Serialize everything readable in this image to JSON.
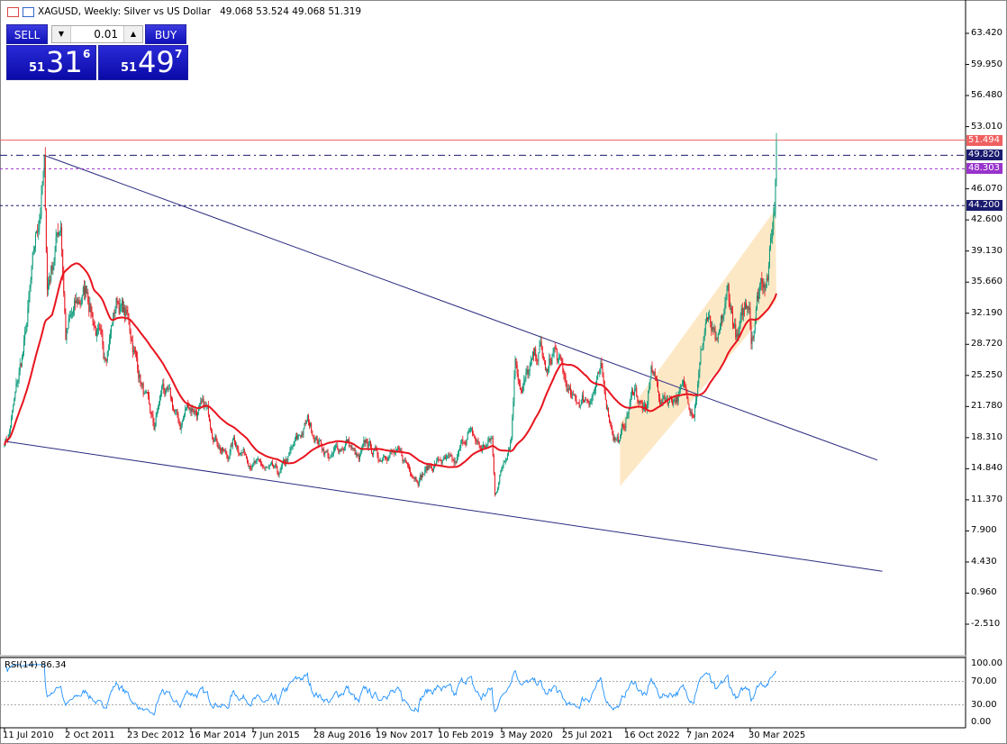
{
  "header": {
    "symbol_title": "XAGUSD, Weekly:  Silver vs US Dollar",
    "ohlc": "49.068 53.524 49.068 51.319",
    "icons": [
      "menu-icon",
      "chart-icon"
    ]
  },
  "trade_panel": {
    "sell_label": "SELL",
    "buy_label": "BUY",
    "lot": "0.01",
    "sell_price": {
      "big": "51",
      "main": "31",
      "small": "6"
    },
    "buy_price": {
      "big": "51",
      "main": "49",
      "small": "7"
    },
    "colors": {
      "button": "#1a1ac8"
    }
  },
  "chart_data": {
    "type": "candlestick",
    "symbol": "XAGUSD",
    "timeframe": "Weekly",
    "y_ticks": [
      "63.420",
      "59.950",
      "56.480",
      "53.010",
      "46.070",
      "42.600",
      "39.130",
      "35.660",
      "32.190",
      "28.720",
      "25.250",
      "21.780",
      "18.310",
      "14.840",
      "11.370",
      "7.900",
      "4.430",
      "0.960",
      "-2.510"
    ],
    "ylim": [
      -2.51,
      63.42
    ],
    "x_ticks": [
      "11 Jul 2010",
      "2 Oct 2011",
      "23 Dec 2012",
      "16 Mar 2014",
      "7 Jun 2015",
      "28 Aug 2016",
      "19 Nov 2017",
      "10 Feb 2019",
      "3 May 2020",
      "25 Jul 2021",
      "16 Oct 2022",
      "7 Jan 2024",
      "30 Mar 2025"
    ],
    "price_path": [
      [
        "2010-07-11",
        18
      ],
      [
        "2010-08-15",
        19
      ],
      [
        "2010-12-05",
        29
      ],
      [
        "2011-04-24",
        48
      ],
      [
        "2011-05-15",
        35
      ],
      [
        "2011-08-21",
        43
      ],
      [
        "2011-09-25",
        30
      ],
      [
        "2012-02-26",
        35
      ],
      [
        "2012-06-24",
        27
      ],
      [
        "2012-09-30",
        34
      ],
      [
        "2012-12-23",
        31
      ],
      [
        "2013-04-14",
        23
      ],
      [
        "2013-06-23",
        19
      ],
      [
        "2013-08-25",
        24
      ],
      [
        "2013-12-29",
        19.5
      ],
      [
        "2014-02-23",
        22
      ],
      [
        "2014-07-06",
        21
      ],
      [
        "2014-12-01",
        16
      ],
      [
        "2015-01-18",
        18
      ],
      [
        "2015-07-19",
        15
      ],
      [
        "2015-12-13",
        14
      ],
      [
        "2016-07-03",
        20
      ],
      [
        "2016-12-18",
        16
      ],
      [
        "2017-04-16",
        18
      ],
      [
        "2017-07-09",
        15.5
      ],
      [
        "2017-09-03",
        17.5
      ],
      [
        "2017-12-10",
        16
      ],
      [
        "2018-01-21",
        17.3
      ],
      [
        "2018-09-09",
        14.2
      ],
      [
        "2019-02-17",
        15.8
      ],
      [
        "2019-06-02",
        15
      ],
      [
        "2019-09-01",
        19
      ],
      [
        "2019-12-08",
        17
      ],
      [
        "2020-02-23",
        18
      ],
      [
        "2020-03-15",
        12
      ],
      [
        "2020-07-12",
        19
      ],
      [
        "2020-08-09",
        28
      ],
      [
        "2020-09-27",
        24
      ],
      [
        "2021-02-07",
        28
      ],
      [
        "2021-03-28",
        25
      ],
      [
        "2021-05-16",
        28
      ],
      [
        "2021-09-26",
        22
      ],
      [
        "2022-01-23",
        23
      ],
      [
        "2022-04-17",
        25
      ],
      [
        "2022-07-17",
        19
      ],
      [
        "2022-09-04",
        18
      ],
      [
        "2022-12-18",
        24
      ],
      [
        "2023-03-12",
        20.5
      ],
      [
        "2023-04-16",
        26
      ],
      [
        "2023-06-25",
        22.5
      ],
      [
        "2023-12-03",
        23.5
      ],
      [
        "2024-02-18",
        22
      ],
      [
        "2024-05-19",
        32
      ],
      [
        "2024-08-04",
        27.5
      ],
      [
        "2024-10-20",
        34
      ],
      [
        "2024-12-29",
        29
      ],
      [
        "2025-03-23",
        34
      ],
      [
        "2025-04-06",
        30
      ],
      [
        "2025-06-08",
        36
      ],
      [
        "2025-08-10",
        38
      ],
      [
        "2025-09-21",
        44
      ],
      [
        "2025-10-05",
        51.319
      ]
    ],
    "moving_average": {
      "color": "#e8141e"
    },
    "trendlines": [
      {
        "from": [
          "2011-04-24",
          49.8
        ],
        "to": [
          "2027-10-03",
          15.8
        ],
        "color": "#2a2a80"
      },
      {
        "from": [
          "2010-07-11",
          17.9
        ],
        "to": [
          "2027-11-07",
          3.4
        ],
        "color": "#2a2a80"
      }
    ],
    "channel": {
      "points": [
        [
          "2022-09-04",
          19.9
        ],
        [
          "2025-09-28",
          43.8
        ],
        [
          "2025-10-05",
          33.6
        ],
        [
          "2022-09-04",
          12.9
        ]
      ],
      "color": "#fde5c0"
    },
    "levels": [
      {
        "value": "51.494",
        "color": "#f06060",
        "style": "solid"
      },
      {
        "value": "49.820",
        "color": "#1a1a6e",
        "style": "dashdot"
      },
      {
        "value": "48.303",
        "color": "#9933cc",
        "style": "dotted"
      },
      {
        "value": "44.200",
        "color": "#1a1a6e",
        "style": "dotted"
      }
    ],
    "candle_colors": {
      "up": "#0a9a7a",
      "down": "#e8141e"
    },
    "rsi": {
      "label": "RSI(14) 86.34",
      "value": 86.34,
      "levels": [
        70,
        30
      ],
      "y_ticks": [
        "100.00",
        "70.00",
        "30.00",
        "0.00"
      ],
      "color": "#1e90ff"
    }
  }
}
